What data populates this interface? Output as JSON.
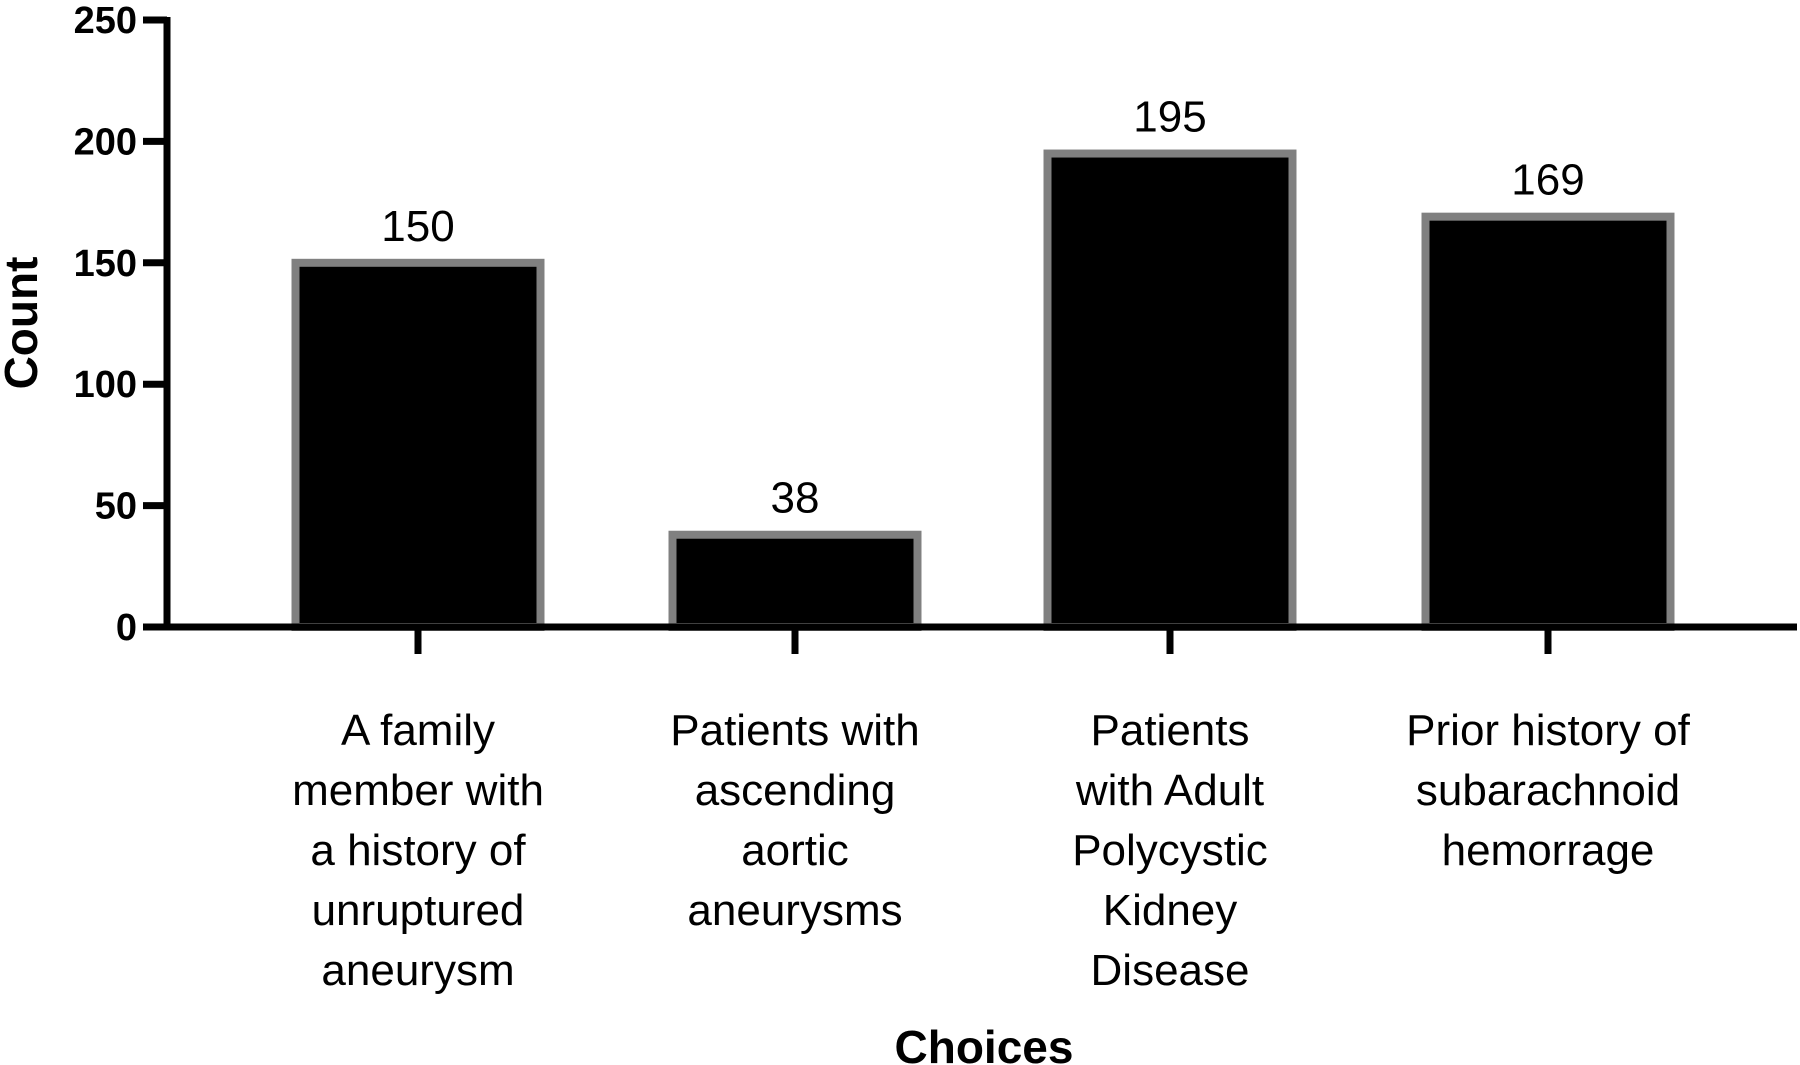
{
  "chart_data": {
    "type": "bar",
    "title": "",
    "xlabel": "Choices",
    "ylabel": "Count",
    "ylim": [
      0,
      250
    ],
    "yticks": [
      0,
      50,
      100,
      150,
      200,
      250
    ],
    "grid": false,
    "categories": [
      [
        "A family",
        "member with",
        "a history of",
        "unruptured",
        "aneurysm"
      ],
      [
        "Patients with",
        "ascending",
        "aortic",
        "aneurysms"
      ],
      [
        "Patients",
        "with Adult",
        "Polycystic",
        "Kidney",
        "Disease"
      ],
      [
        "Prior history of",
        "subarachnoid",
        "hemorrage"
      ]
    ],
    "values": [
      150,
      38,
      195,
      169
    ],
    "data_labels": [
      "150",
      "38",
      "195",
      "169"
    ],
    "colors": {
      "bar_fill": "#000000",
      "bar_stroke": "#808080",
      "axis": "#000000"
    }
  }
}
